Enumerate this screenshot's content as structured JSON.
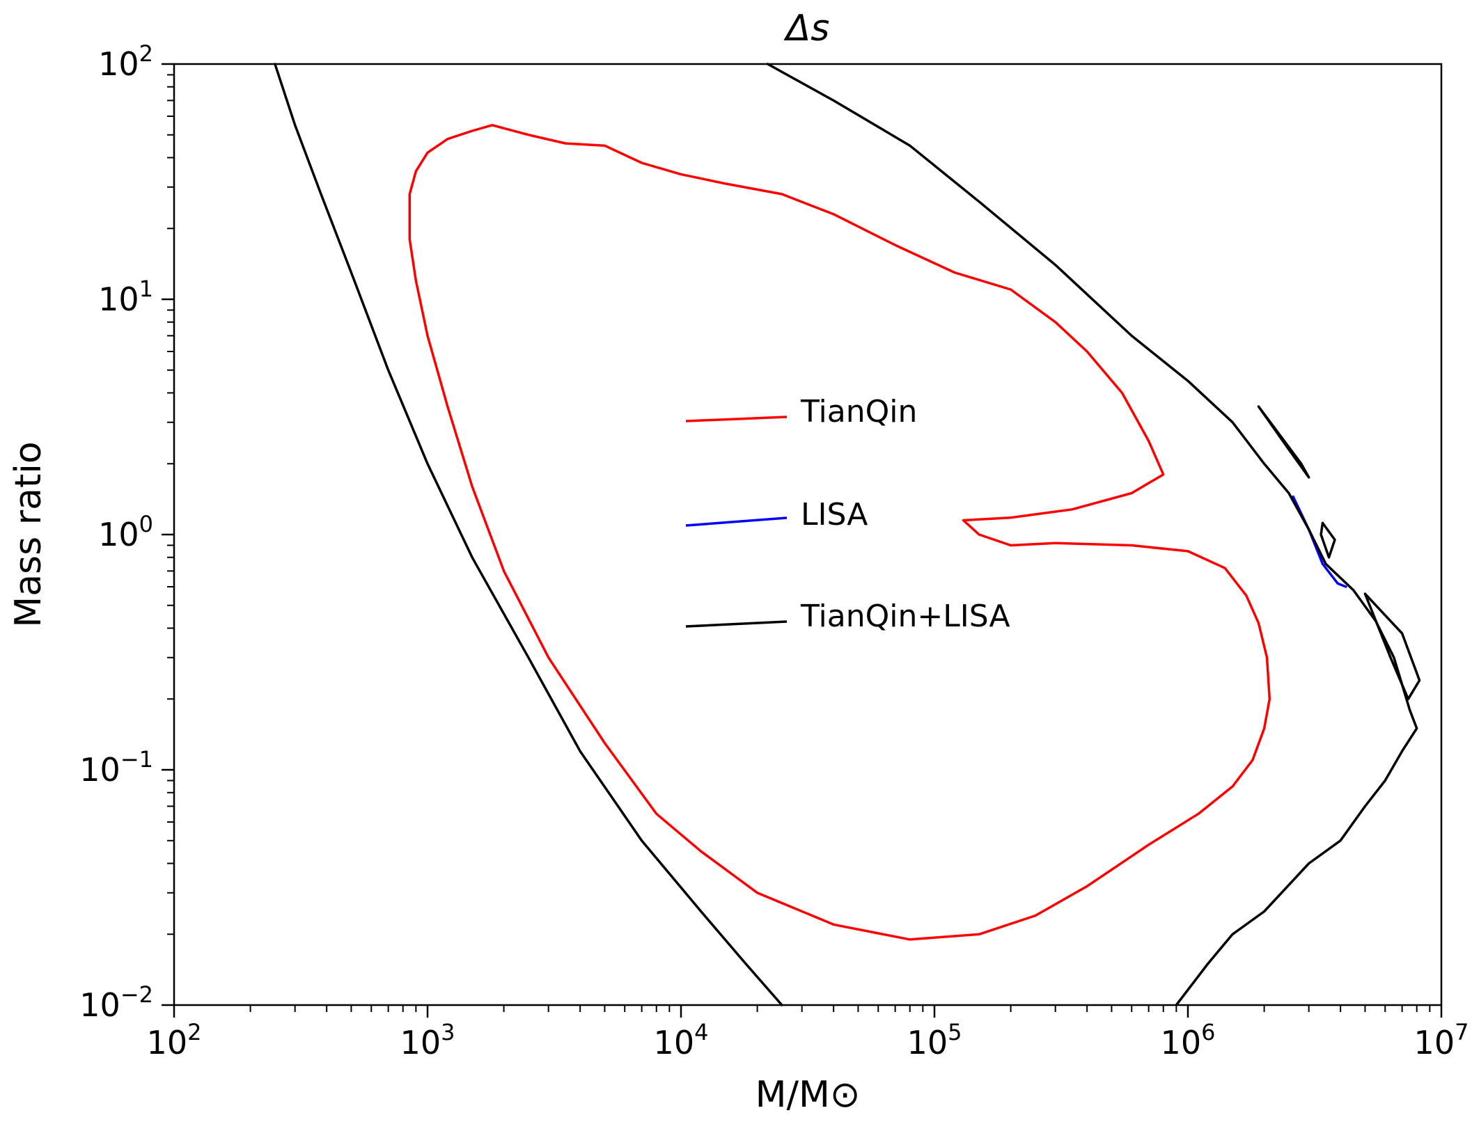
{
  "chart_data": {
    "type": "line",
    "title": "Δs",
    "xlabel": "M/M⊙",
    "ylabel": "Mass ratio",
    "xscale": "log",
    "yscale": "log",
    "xlim": [
      100,
      10000000
    ],
    "ylim": [
      0.01,
      100
    ],
    "grid": false,
    "legend_position": "center",
    "x_ticks": [
      {
        "value": 100,
        "base": "10",
        "exp": "2"
      },
      {
        "value": 1000,
        "base": "10",
        "exp": "3"
      },
      {
        "value": 10000,
        "base": "10",
        "exp": "4"
      },
      {
        "value": 100000,
        "base": "10",
        "exp": "5"
      },
      {
        "value": 1000000,
        "base": "10",
        "exp": "6"
      },
      {
        "value": 10000000,
        "base": "10",
        "exp": "7"
      }
    ],
    "y_ticks": [
      {
        "value": 0.01,
        "base": "10",
        "exp": "−2"
      },
      {
        "value": 0.1,
        "base": "10",
        "exp": "−1"
      },
      {
        "value": 1,
        "base": "10",
        "exp": "0"
      },
      {
        "value": 10,
        "base": "10",
        "exp": "1"
      },
      {
        "value": 100,
        "base": "10",
        "exp": "2"
      }
    ],
    "series": [
      {
        "name": "TianQin",
        "color": "#ff0000",
        "curves": [
          [
            [
              1800,
              55
            ],
            [
              1500,
              52
            ],
            [
              1200,
              48
            ],
            [
              1000,
              42
            ],
            [
              900,
              35
            ],
            [
              850,
              28
            ],
            [
              850,
              18
            ],
            [
              900,
              12
            ],
            [
              1000,
              7
            ],
            [
              1200,
              3.5
            ],
            [
              1500,
              1.6
            ],
            [
              2000,
              0.7
            ],
            [
              3000,
              0.3
            ],
            [
              5000,
              0.13
            ],
            [
              8000,
              0.065
            ],
            [
              12000,
              0.045
            ],
            [
              20000,
              0.03
            ],
            [
              40000,
              0.022
            ],
            [
              80000,
              0.019
            ],
            [
              150000,
              0.02
            ],
            [
              250000,
              0.024
            ],
            [
              400000,
              0.032
            ],
            [
              700000,
              0.048
            ],
            [
              1100000,
              0.065
            ],
            [
              1500000,
              0.085
            ],
            [
              1800000,
              0.11
            ],
            [
              2000000,
              0.15
            ],
            [
              2100000,
              0.2
            ],
            [
              2050000,
              0.3
            ],
            [
              1900000,
              0.42
            ],
            [
              1700000,
              0.55
            ],
            [
              1400000,
              0.72
            ],
            [
              1000000,
              0.85
            ],
            [
              600000,
              0.9
            ],
            [
              300000,
              0.92
            ],
            [
              200000,
              0.9
            ],
            [
              150000,
              1.0
            ],
            [
              130000,
              1.15
            ],
            [
              200000,
              1.18
            ],
            [
              350000,
              1.28
            ],
            [
              600000,
              1.5
            ],
            [
              800000,
              1.8
            ],
            [
              700000,
              2.5
            ],
            [
              550000,
              4
            ],
            [
              400000,
              6
            ],
            [
              300000,
              8
            ],
            [
              200000,
              11
            ],
            [
              120000,
              13
            ],
            [
              70000,
              17
            ],
            [
              40000,
              23
            ],
            [
              25000,
              28
            ],
            [
              15000,
              31
            ],
            [
              10000,
              34
            ],
            [
              7000,
              38
            ],
            [
              5000,
              45
            ],
            [
              3500,
              46
            ],
            [
              2500,
              50
            ],
            [
              1800,
              55
            ]
          ]
        ]
      },
      {
        "name": "LISA",
        "color": "#0000ff",
        "curves": [
          [
            [
              2600000,
              1.45
            ],
            [
              3000000,
              1.05
            ],
            [
              3400000,
              0.75
            ],
            [
              3900000,
              0.62
            ],
            [
              4200000,
              0.6
            ]
          ]
        ]
      },
      {
        "name": "TianQin+LISA",
        "color": "#000000",
        "curves": [
          [
            [
              250,
              100
            ],
            [
              300,
              55
            ],
            [
              380,
              28
            ],
            [
              500,
              13
            ],
            [
              700,
              5
            ],
            [
              1000,
              2
            ],
            [
              1500,
              0.8
            ],
            [
              2500,
              0.3
            ],
            [
              4000,
              0.12
            ],
            [
              7000,
              0.05
            ],
            [
              12000,
              0.025
            ],
            [
              18000,
              0.015
            ],
            [
              25000,
              0.01
            ]
          ],
          [
            [
              22000,
              100
            ],
            [
              40000,
              70
            ],
            [
              80000,
              45
            ],
            [
              150000,
              26
            ],
            [
              300000,
              14
            ],
            [
              600000,
              7
            ],
            [
              1000000,
              4.5
            ],
            [
              1500000,
              3
            ],
            [
              2000000,
              2
            ],
            [
              2500000,
              1.5
            ],
            [
              3000000,
              1.05
            ],
            [
              3500000,
              0.75
            ],
            [
              4500000,
              0.58
            ],
            [
              5500000,
              0.43
            ],
            [
              6500000,
              0.3
            ],
            [
              7500000,
              0.18
            ],
            [
              8000000,
              0.15
            ],
            [
              7000000,
              0.12
            ],
            [
              6000000,
              0.09
            ],
            [
              5000000,
              0.07
            ],
            [
              4000000,
              0.05
            ],
            [
              3000000,
              0.04
            ],
            [
              2000000,
              0.025
            ],
            [
              1500000,
              0.02
            ],
            [
              1200000,
              0.015
            ],
            [
              900000,
              0.01
            ]
          ],
          [
            [
              1900000,
              3.5
            ],
            [
              2800000,
              2.0
            ],
            [
              3000000,
              1.75
            ],
            [
              2500000,
              2.3
            ],
            [
              1900000,
              3.5
            ]
          ],
          [
            [
              3400000,
              1.12
            ],
            [
              3800000,
              0.95
            ],
            [
              3600000,
              0.8
            ],
            [
              3350000,
              1.0
            ],
            [
              3400000,
              1.12
            ]
          ],
          [
            [
              5000000,
              0.56
            ],
            [
              7000000,
              0.38
            ],
            [
              8200000,
              0.24
            ],
            [
              7400000,
              0.2
            ],
            [
              6300000,
              0.3
            ],
            [
              5000000,
              0.56
            ]
          ]
        ]
      }
    ]
  }
}
